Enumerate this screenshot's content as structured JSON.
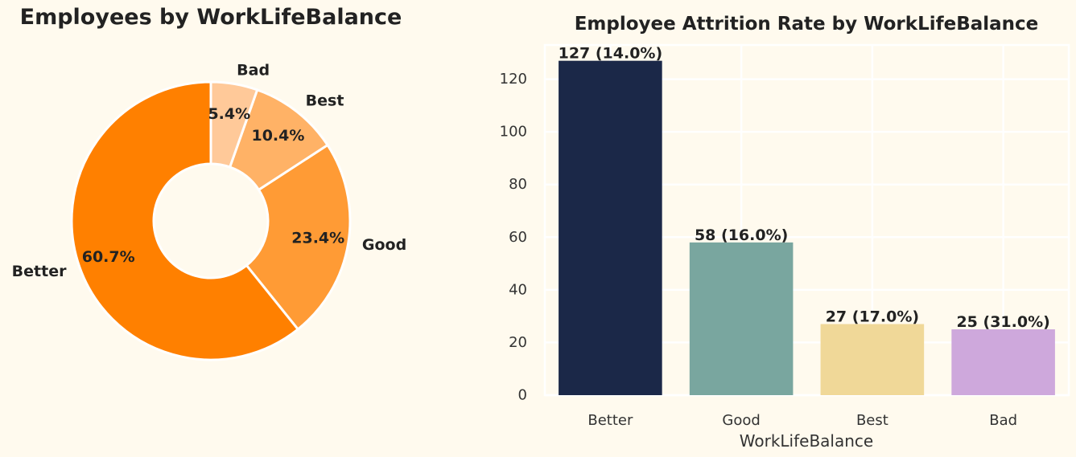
{
  "chart_data": [
    {
      "type": "pie",
      "title": "Employees by WorkLifeBalance",
      "donut": true,
      "labels": [
        "Better",
        "Good",
        "Best",
        "Bad"
      ],
      "values": [
        60.7,
        23.4,
        10.4,
        5.4
      ],
      "percent_labels": [
        "60.7%",
        "23.4%",
        "10.4%",
        "5.4%"
      ],
      "colors": [
        "#ff8000",
        "#ff9b35",
        "#ffb266",
        "#ffc999"
      ],
      "startangle_deg": 90,
      "direction": "counterclockwise"
    },
    {
      "type": "bar",
      "title": "Employee Attrition Rate by WorkLifeBalance",
      "categories": [
        "Better",
        "Good",
        "Best",
        "Bad"
      ],
      "values": [
        127,
        58,
        27,
        25
      ],
      "bar_labels": [
        "127 (14.0%)",
        "58 (16.0%)",
        "27 (17.0%)",
        "25 (31.0%)"
      ],
      "colors": [
        "#1b2848",
        "#79a69f",
        "#f0d898",
        "#cea8dc"
      ],
      "xlabel": "WorkLifeBalance",
      "ylabel": "",
      "yticks": [
        0,
        20,
        40,
        60,
        80,
        100,
        120
      ],
      "ylim": [
        0,
        133
      ],
      "grid": true,
      "grid_color": "#ffffff",
      "background": "#fffaee"
    }
  ]
}
